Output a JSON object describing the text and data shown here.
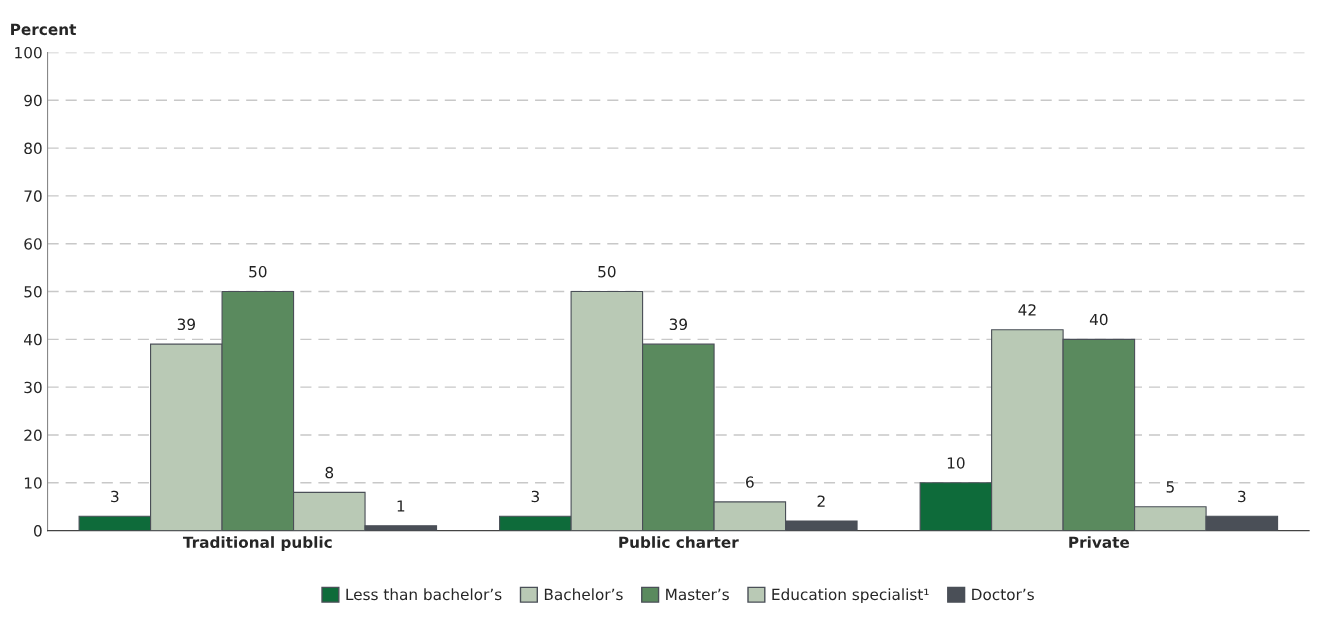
{
  "chart_data": {
    "type": "bar",
    "ylabel": "Percent",
    "categories": [
      "Traditional public",
      "Public charter",
      "Private"
    ],
    "series": [
      {
        "name": "Less than bachelor’s",
        "color": "#0e6b3a",
        "values": [
          3,
          3,
          10
        ]
      },
      {
        "name": "Bachelor’s",
        "color": "#b9c9b5",
        "values": [
          39,
          50,
          42
        ]
      },
      {
        "name": "Master’s",
        "color": "#5a8a5e",
        "values": [
          50,
          39,
          40
        ]
      },
      {
        "name": "Education specialist¹",
        "color": "#b9c9b5",
        "values": [
          8,
          6,
          5
        ]
      },
      {
        "name": "Doctor’s",
        "color": "#4a4f57",
        "values": [
          1,
          2,
          3
        ]
      }
    ],
    "ylim": [
      0,
      100
    ],
    "yticks": [
      0,
      10,
      20,
      30,
      40,
      50,
      60,
      70,
      80,
      90,
      100
    ],
    "grid": "y",
    "legend": "bottom",
    "data_labels": true
  }
}
